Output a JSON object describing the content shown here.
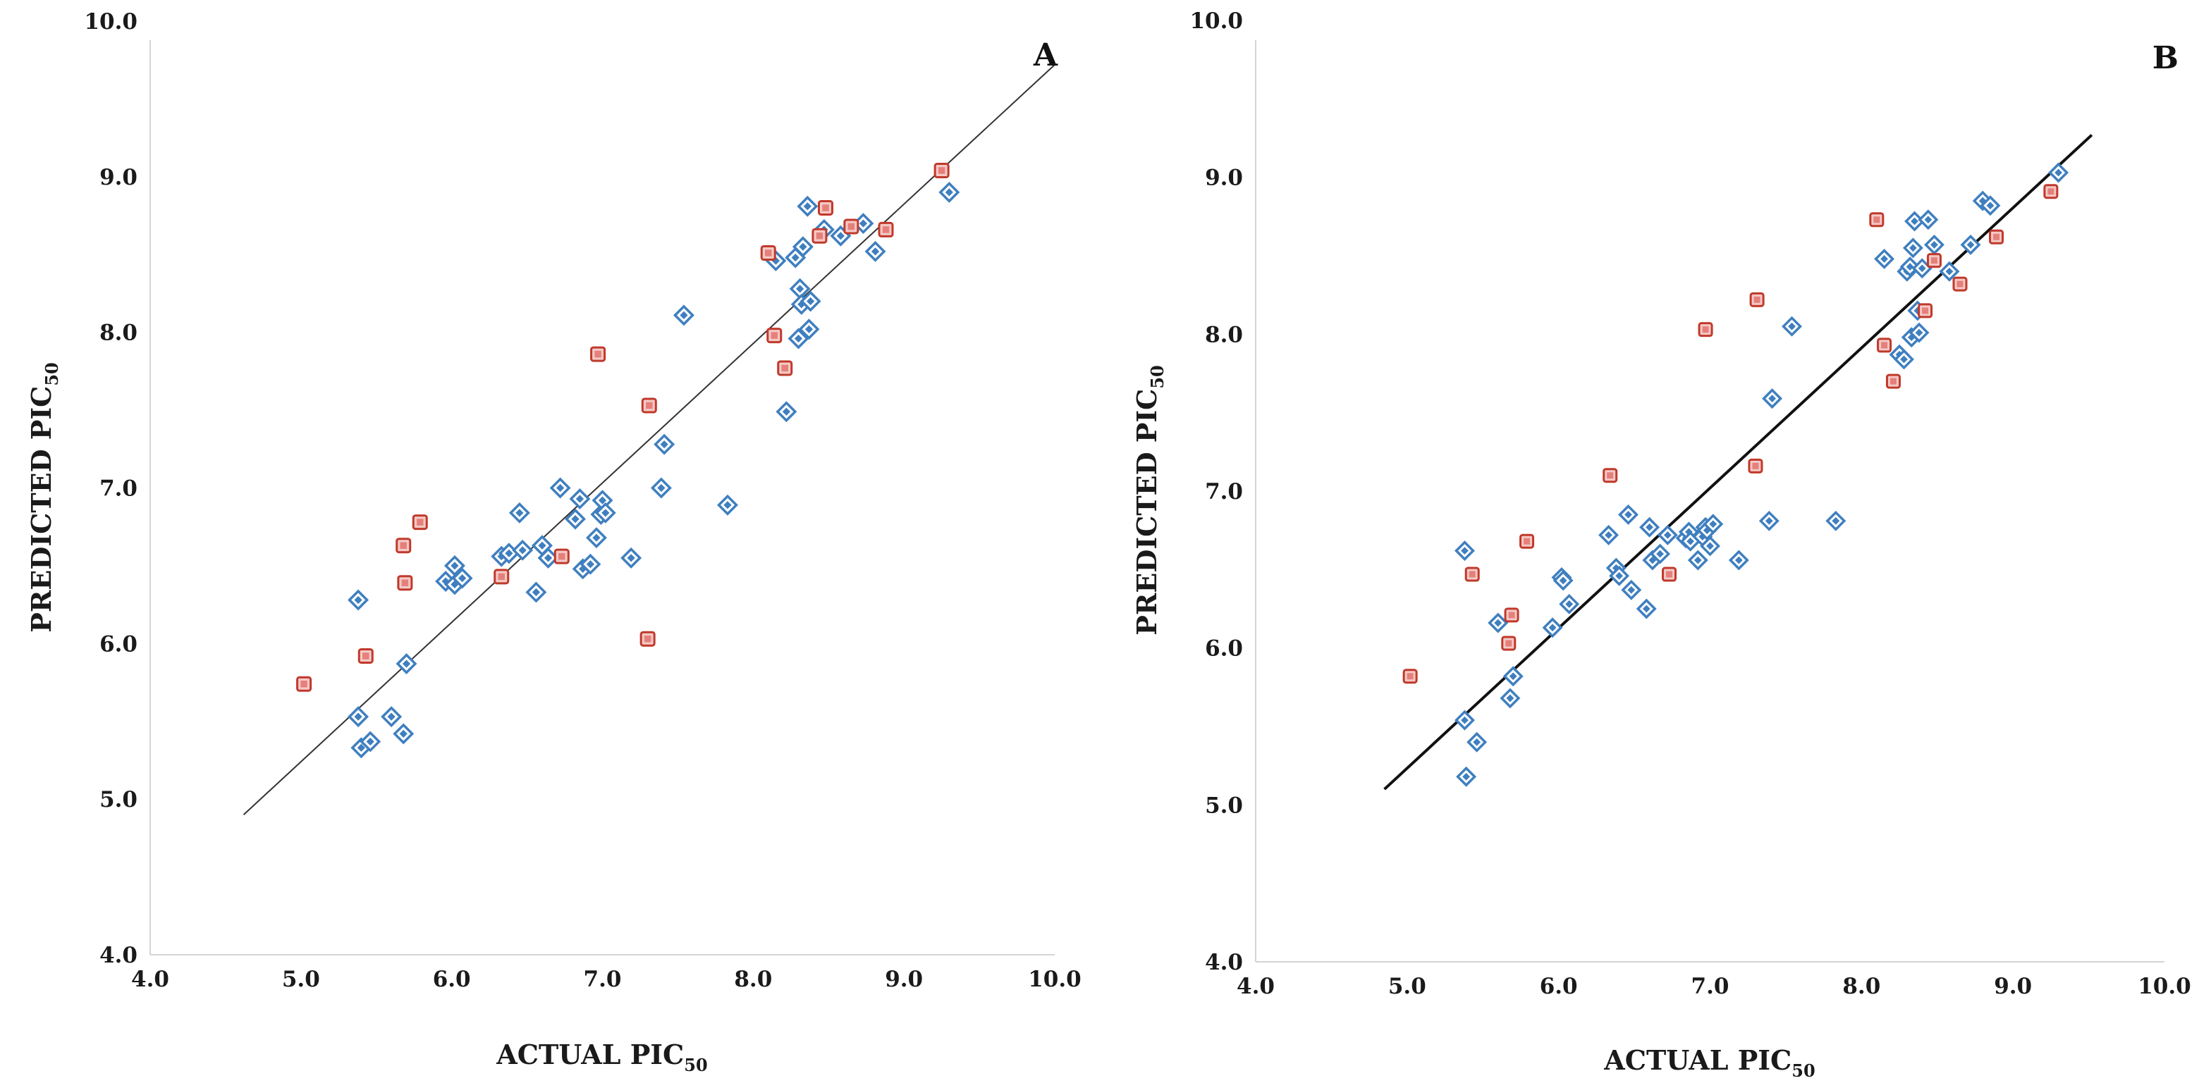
{
  "colors": {
    "training_fill": "#9cc3e4",
    "training_stroke": "#3f7fbf",
    "test_fill": "#e5807b",
    "test_stroke": "#c0392b",
    "axis_text": "#1a1a1a",
    "axis_line": "#d4d4d4"
  },
  "chart_data": [
    {
      "type": "scatter",
      "panel_label": "A",
      "xlabel": {
        "main": "ACTUAL PIC",
        "sub": "50"
      },
      "ylabel": {
        "main": "PREDICTED PIC",
        "sub": "50"
      },
      "xlim": [
        4.0,
        10.0
      ],
      "ylim": [
        4.0,
        10.0
      ],
      "x_ticks": [
        "4.0",
        "5.0",
        "6.0",
        "7.0",
        "8.0",
        "9.0",
        "10.0"
      ],
      "y_ticks": [
        "4.0",
        "5.0",
        "6.0",
        "7.0",
        "8.0",
        "9.0",
        "10.0"
      ],
      "grid": false,
      "trendline": {
        "x": [
          4.62,
          10.0
        ],
        "y": [
          4.9,
          9.72
        ],
        "style": "thin"
      },
      "series": [
        {
          "name": "training",
          "marker": "diamond",
          "points": [
            [
              5.38,
              6.28
            ],
            [
              5.38,
              5.53
            ],
            [
              5.4,
              5.33
            ],
            [
              5.46,
              5.37
            ],
            [
              5.6,
              5.53
            ],
            [
              5.68,
              5.42
            ],
            [
              5.7,
              5.87
            ],
            [
              5.96,
              6.4
            ],
            [
              6.02,
              6.5
            ],
            [
              6.02,
              6.38
            ],
            [
              6.07,
              6.42
            ],
            [
              6.33,
              6.56
            ],
            [
              6.38,
              6.58
            ],
            [
              6.45,
              6.84
            ],
            [
              6.47,
              6.6
            ],
            [
              6.56,
              6.33
            ],
            [
              6.6,
              6.63
            ],
            [
              6.64,
              6.55
            ],
            [
              6.72,
              7.0
            ],
            [
              6.82,
              6.8
            ],
            [
              6.85,
              6.93
            ],
            [
              6.87,
              6.48
            ],
            [
              6.92,
              6.51
            ],
            [
              6.96,
              6.68
            ],
            [
              6.99,
              6.83
            ],
            [
              7.0,
              6.92
            ],
            [
              7.02,
              6.84
            ],
            [
              7.19,
              6.55
            ],
            [
              7.39,
              7.0
            ],
            [
              7.41,
              7.28
            ],
            [
              7.54,
              8.11
            ],
            [
              7.83,
              6.89
            ],
            [
              8.15,
              8.46
            ],
            [
              8.22,
              7.49
            ],
            [
              8.28,
              8.48
            ],
            [
              8.3,
              7.96
            ],
            [
              8.31,
              8.28
            ],
            [
              8.32,
              8.18
            ],
            [
              8.33,
              8.55
            ],
            [
              8.36,
              8.81
            ],
            [
              8.37,
              8.02
            ],
            [
              8.38,
              8.2
            ],
            [
              8.47,
              8.66
            ],
            [
              8.58,
              8.62
            ],
            [
              8.73,
              8.7
            ],
            [
              8.81,
              8.52
            ],
            [
              9.3,
              8.9
            ]
          ]
        },
        {
          "name": "test",
          "marker": "square",
          "points": [
            [
              5.02,
              5.74
            ],
            [
              5.43,
              5.92
            ],
            [
              5.68,
              6.63
            ],
            [
              5.69,
              6.39
            ],
            [
              5.79,
              6.78
            ],
            [
              6.33,
              6.43
            ],
            [
              6.73,
              6.56
            ],
            [
              6.97,
              7.86
            ],
            [
              7.3,
              6.03
            ],
            [
              7.31,
              7.53
            ],
            [
              8.1,
              8.51
            ],
            [
              8.14,
              7.98
            ],
            [
              8.21,
              7.77
            ],
            [
              8.44,
              8.62
            ],
            [
              8.48,
              8.8
            ],
            [
              8.65,
              8.68
            ],
            [
              8.88,
              8.66
            ],
            [
              9.25,
              9.04
            ]
          ]
        }
      ]
    },
    {
      "type": "scatter",
      "panel_label": "B",
      "xlabel": {
        "main": "ACTUAL PIC",
        "sub": "50"
      },
      "ylabel": {
        "main": "PREDICTED PIC",
        "sub": "50"
      },
      "xlim": [
        4.0,
        10.0
      ],
      "ylim": [
        4.0,
        10.0
      ],
      "x_ticks": [
        "4.0",
        "5.0",
        "6.0",
        "7.0",
        "8.0",
        "9.0",
        "10.0"
      ],
      "y_ticks": [
        "4.0",
        "5.0",
        "6.0",
        "7.0",
        "8.0",
        "9.0",
        "10.0"
      ],
      "grid": false,
      "trendline": {
        "x": [
          4.85,
          9.52
        ],
        "y": [
          5.1,
          9.27
        ],
        "style": "thick"
      },
      "series": [
        {
          "name": "training",
          "marker": "diamond",
          "points": [
            [
              5.38,
              6.62
            ],
            [
              5.38,
              5.54
            ],
            [
              5.39,
              5.18
            ],
            [
              5.46,
              5.4
            ],
            [
              5.6,
              6.16
            ],
            [
              5.68,
              5.68
            ],
            [
              5.7,
              5.82
            ],
            [
              5.96,
              6.13
            ],
            [
              6.02,
              6.45
            ],
            [
              6.03,
              6.43
            ],
            [
              6.07,
              6.28
            ],
            [
              6.33,
              6.72
            ],
            [
              6.38,
              6.51
            ],
            [
              6.4,
              6.46
            ],
            [
              6.46,
              6.85
            ],
            [
              6.48,
              6.37
            ],
            [
              6.58,
              6.25
            ],
            [
              6.6,
              6.77
            ],
            [
              6.62,
              6.56
            ],
            [
              6.67,
              6.6
            ],
            [
              6.72,
              6.72
            ],
            [
              6.84,
              6.7
            ],
            [
              6.86,
              6.74
            ],
            [
              6.87,
              6.68
            ],
            [
              6.92,
              6.56
            ],
            [
              6.95,
              6.71
            ],
            [
              6.97,
              6.77
            ],
            [
              6.98,
              6.75
            ],
            [
              7.0,
              6.65
            ],
            [
              7.02,
              6.79
            ],
            [
              7.19,
              6.56
            ],
            [
              7.39,
              6.81
            ],
            [
              7.41,
              7.59
            ],
            [
              7.54,
              8.05
            ],
            [
              7.83,
              6.81
            ],
            [
              8.15,
              8.48
            ],
            [
              8.25,
              7.87
            ],
            [
              8.28,
              7.84
            ],
            [
              8.3,
              8.4
            ],
            [
              8.32,
              8.43
            ],
            [
              8.33,
              7.98
            ],
            [
              8.34,
              8.55
            ],
            [
              8.35,
              8.72
            ],
            [
              8.37,
              8.15
            ],
            [
              8.38,
              8.01
            ],
            [
              8.4,
              8.42
            ],
            [
              8.44,
              8.73
            ],
            [
              8.48,
              8.57
            ],
            [
              8.58,
              8.4
            ],
            [
              8.72,
              8.57
            ],
            [
              8.8,
              8.85
            ],
            [
              8.85,
              8.82
            ],
            [
              9.3,
              9.03
            ]
          ]
        },
        {
          "name": "test",
          "marker": "square",
          "points": [
            [
              5.02,
              5.82
            ],
            [
              5.43,
              6.47
            ],
            [
              5.67,
              6.03
            ],
            [
              5.69,
              6.21
            ],
            [
              5.79,
              6.68
            ],
            [
              6.34,
              7.1
            ],
            [
              6.73,
              6.47
            ],
            [
              6.97,
              8.03
            ],
            [
              7.3,
              7.16
            ],
            [
              7.31,
              8.22
            ],
            [
              8.1,
              8.73
            ],
            [
              8.15,
              7.93
            ],
            [
              8.21,
              7.7
            ],
            [
              8.42,
              8.15
            ],
            [
              8.48,
              8.47
            ],
            [
              8.65,
              8.32
            ],
            [
              8.89,
              8.62
            ],
            [
              9.25,
              8.91
            ]
          ]
        }
      ]
    }
  ]
}
